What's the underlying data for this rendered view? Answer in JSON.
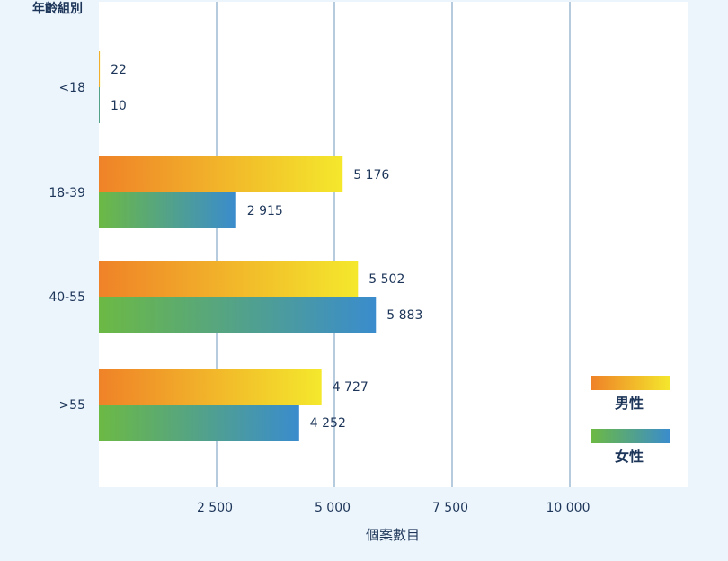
{
  "chart_data": {
    "type": "bar",
    "orientation": "horizontal",
    "title": "",
    "ylabel": "年齡組別",
    "xlabel": "個案數目",
    "categories": [
      "<18",
      "18-39",
      "40-55",
      ">55"
    ],
    "series": [
      {
        "name": "男性",
        "values": [
          22,
          5176,
          5502,
          4727
        ],
        "value_labels": [
          "22",
          "5 176",
          "5 502",
          "4 727"
        ],
        "gradient": [
          "#ef8228",
          "#f4e82c"
        ]
      },
      {
        "name": "女性",
        "values": [
          10,
          2915,
          5883,
          4252
        ],
        "value_labels": [
          "10",
          "2 915",
          "5 883",
          "4 252"
        ],
        "gradient": [
          "#6cb944",
          "#3a8ccd"
        ]
      }
    ],
    "xticks": [
      2500,
      5000,
      7500,
      10000
    ],
    "xtick_labels": [
      "2 500",
      "5 000",
      "7 500",
      "10  000"
    ],
    "xlim": [
      0,
      12500
    ],
    "grid": "vertical",
    "legend": "bottom-right"
  },
  "colors": {
    "page_bg": "#edf5fc",
    "plot_bg": "#ffffff",
    "grid": "#6f97bf",
    "text": "#1c3559"
  }
}
